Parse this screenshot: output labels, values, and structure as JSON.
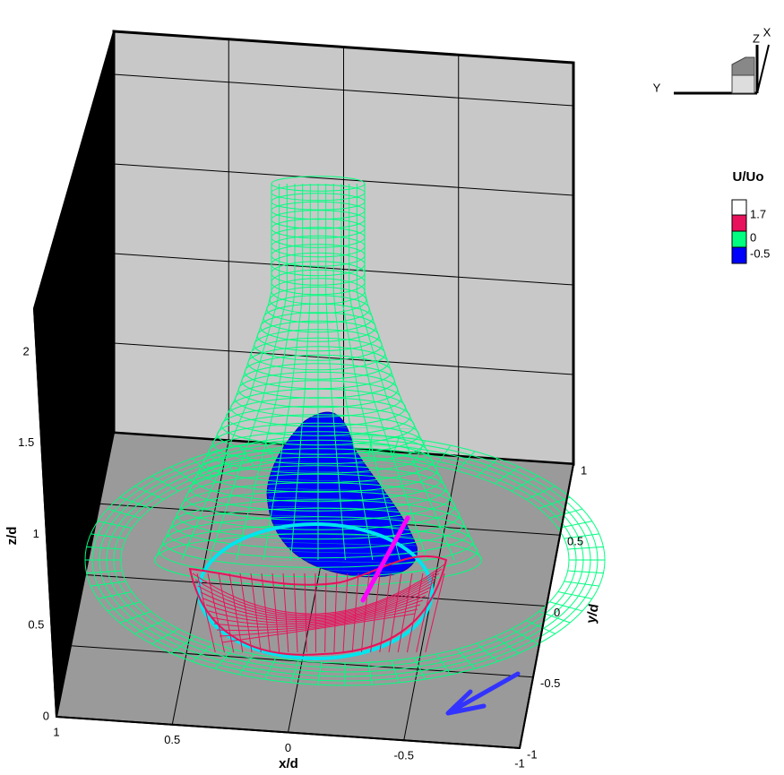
{
  "chart_data": {
    "type": "isosurface3d",
    "xlabel": "x/d",
    "ylabel": "y/d",
    "zlabel": "z/d",
    "xlim": [
      1,
      -1
    ],
    "ylim": [
      -1,
      1
    ],
    "zlim": [
      0,
      2.24
    ],
    "xticks": [
      1,
      0.5,
      0,
      -0.5,
      -1
    ],
    "yticks": [
      1,
      0.5,
      0,
      -0.5,
      -1
    ],
    "zticks": [
      0,
      0.5,
      1,
      1.5,
      2
    ],
    "grid": true,
    "legend": {
      "title": "U/Uo",
      "levels": [
        {
          "value": 1.7,
          "color": "#e8125c"
        },
        {
          "value": 0,
          "color": "#00ff80"
        },
        {
          "value": -0.5,
          "color": "#0000ff"
        }
      ]
    },
    "orientation_axes": [
      "Z",
      "X",
      "Y"
    ]
  }
}
